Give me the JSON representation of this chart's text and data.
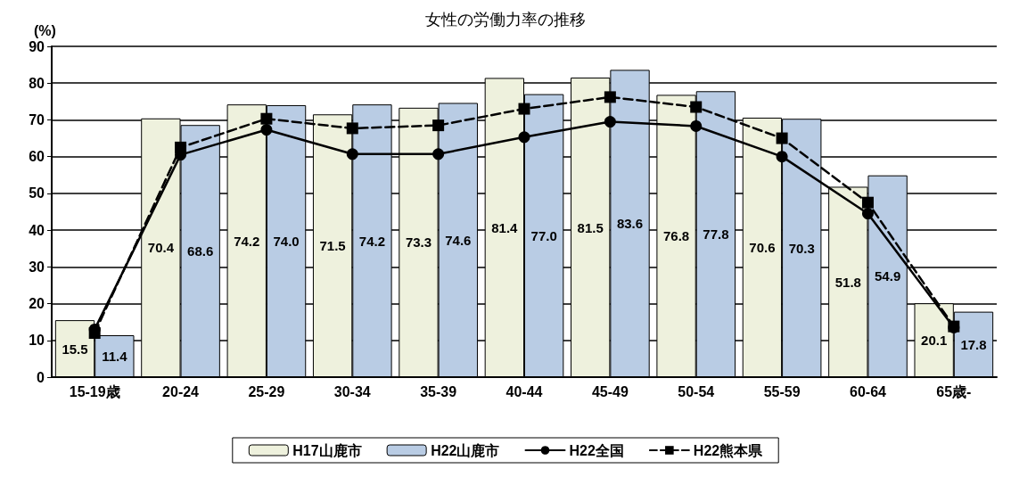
{
  "chart_data": {
    "type": "bar",
    "title": "女性の労働力率の推移",
    "ylabel": "(%)",
    "categories": [
      "15-19歳",
      "20-24",
      "25-29",
      "30-34",
      "35-39",
      "40-44",
      "45-49",
      "50-54",
      "55-59",
      "60-64",
      "65歳-"
    ],
    "series": [
      {
        "name": "H17山鹿市",
        "color": "#eef1dd",
        "values": [
          15.5,
          70.4,
          74.2,
          71.5,
          73.3,
          81.4,
          81.5,
          76.8,
          70.6,
          51.8,
          20.1
        ],
        "value_labels": [
          "15.5",
          "70.4",
          "74.2",
          "71.5",
          "73.3",
          "81.4",
          "81.5",
          "76.8",
          "70.6",
          "51.8",
          "20.1"
        ]
      },
      {
        "name": "H22山鹿市",
        "color": "#b9cce4",
        "values": [
          11.4,
          68.6,
          74.0,
          74.2,
          74.6,
          77.0,
          83.6,
          77.8,
          70.3,
          54.9,
          17.8
        ],
        "value_labels": [
          "11.4",
          "68.6",
          "74.0",
          "74.2",
          "74.6",
          "77.0",
          "83.6",
          "77.8",
          "70.3",
          "54.9",
          "17.8"
        ]
      },
      {
        "name": "H22全国",
        "type": "line",
        "color": "#000000",
        "marker": "circle",
        "line_style": "solid",
        "values": [
          13.0,
          60.5,
          67.3,
          60.7,
          60.7,
          65.3,
          69.5,
          68.3,
          60.0,
          44.5,
          13.5
        ]
      },
      {
        "name": "H22熊本県",
        "type": "line",
        "color": "#000000",
        "marker": "square",
        "line_style": "dashed",
        "values": [
          12.0,
          62.5,
          70.3,
          67.7,
          68.5,
          73.0,
          76.2,
          73.5,
          65.0,
          47.5,
          13.8
        ]
      }
    ],
    "ylim": [
      0,
      90
    ],
    "yticks": [
      0,
      10,
      20,
      30,
      40,
      50,
      60,
      70,
      80,
      90
    ],
    "grid": "y",
    "legend": "bottom"
  }
}
